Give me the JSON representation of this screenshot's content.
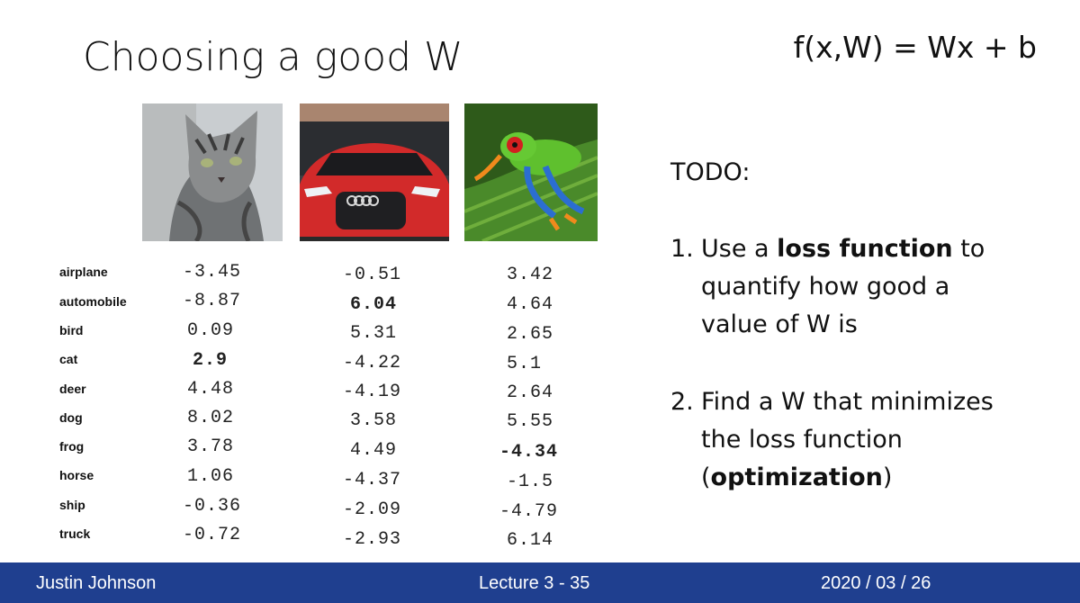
{
  "slide": {
    "title": "Choosing a good W",
    "formula": "f(x,W) = Wx + b"
  },
  "images": [
    {
      "name": "cat"
    },
    {
      "name": "car"
    },
    {
      "name": "frog"
    }
  ],
  "classes": [
    "airplane",
    "automobile",
    "bird",
    "cat",
    "deer",
    "dog",
    "frog",
    "horse",
    "ship",
    "truck"
  ],
  "scores": {
    "cat_column": [
      "-3.45",
      "-8.87",
      "0.09",
      "2.9",
      "4.48",
      "8.02",
      "3.78",
      "1.06",
      "-0.36",
      "-0.72"
    ],
    "car_column": [
      "-0.51",
      "6.04",
      "5.31",
      "-4.22",
      "-4.19",
      "3.58",
      "4.49",
      "-4.37",
      "-2.09",
      "-2.93"
    ],
    "frog_column": [
      "3.42",
      "4.64",
      "2.65",
      "5.1",
      "2.64",
      "5.55",
      "-4.34",
      "-1.5",
      "-4.79",
      "6.14"
    ],
    "highlight": {
      "cat_column": 3,
      "car_column": 1,
      "frog_column": 6
    }
  },
  "todo": {
    "heading": "TODO:",
    "item1_number": "1.",
    "item1_line1_pre": "Use a ",
    "item1_line1_bold": "loss function",
    "item1_line1_post": " to",
    "item1_line2": "quantify how good a",
    "item1_line3": "value of W is",
    "item2_number": "2.",
    "item2_line1": "Find a W that minimizes",
    "item2_line2": "the loss function",
    "item2_line3_pre": "(",
    "item2_line3_bold": "optimization",
    "item2_line3_post": ")"
  },
  "footer": {
    "author": "Justin Johnson",
    "lecture": "Lecture 3 - 35",
    "date": "2020 / 03 / 26",
    "background": "#1f3f8f"
  }
}
